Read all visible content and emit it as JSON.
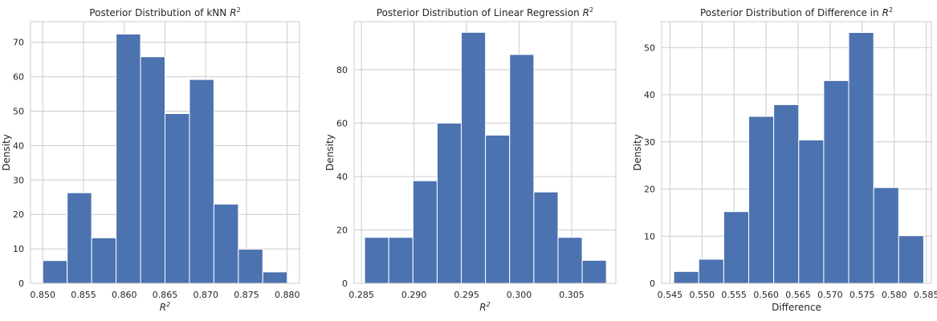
{
  "chart_data": [
    {
      "type": "bar",
      "title": "Posterior Distribution of kNN",
      "title_suffix": "R",
      "title_sup": "2",
      "xlabel": "R",
      "xlabel_sup": "2",
      "ylabel": "Density",
      "xlim": [
        0.8485,
        0.8815
      ],
      "ylim": [
        0,
        76
      ],
      "xticks": [
        0.85,
        0.855,
        0.86,
        0.865,
        0.87,
        0.875,
        0.88
      ],
      "xtick_labels": [
        "0.850",
        "0.855",
        "0.860",
        "0.865",
        "0.870",
        "0.875",
        "0.880"
      ],
      "yticks": [
        0,
        10,
        20,
        30,
        40,
        50,
        60,
        70
      ],
      "ytick_labels": [
        "0",
        "10",
        "20",
        "30",
        "40",
        "50",
        "60",
        "70"
      ],
      "bin_edges": [
        0.85,
        0.853,
        0.856,
        0.859,
        0.862,
        0.865,
        0.868,
        0.871,
        0.874,
        0.877,
        0.88
      ],
      "values": [
        6.6,
        26.3,
        13.2,
        72.4,
        65.8,
        49.3,
        59.2,
        23.0,
        9.9,
        3.3
      ],
      "grid": true,
      "color": "#4c72b0"
    },
    {
      "type": "bar",
      "title": "Posterior Distribution of Linear Regression",
      "title_suffix": "R",
      "title_sup": "2",
      "xlabel": "R",
      "xlabel_sup": "2",
      "ylabel": "Density",
      "xlim": [
        0.2843,
        0.3092
      ],
      "ylim": [
        0,
        98
      ],
      "xticks": [
        0.285,
        0.29,
        0.295,
        0.3,
        0.305
      ],
      "xtick_labels": [
        "0.285",
        "0.290",
        "0.295",
        "0.300",
        "0.305"
      ],
      "yticks": [
        0,
        20,
        40,
        60,
        80
      ],
      "ytick_labels": [
        "0",
        "20",
        "40",
        "60",
        "80"
      ],
      "bin_edges": [
        0.2853,
        0.2876,
        0.2899,
        0.2922,
        0.2945,
        0.2968,
        0.2991,
        0.3014,
        0.3037,
        0.306,
        0.3083
      ],
      "values": [
        17.2,
        17.2,
        38.4,
        60.0,
        94.0,
        55.5,
        85.7,
        34.2,
        17.2,
        8.6
      ],
      "grid": true,
      "color": "#4c72b0"
    },
    {
      "type": "bar",
      "title": "Posterior Distribution of Difference in",
      "title_suffix": "R",
      "title_sup": "2",
      "xlabel": "Difference",
      "xlabel_sup": "",
      "ylabel": "Density",
      "xlim": [
        0.5437,
        0.5858
      ],
      "ylim": [
        0,
        55.5
      ],
      "xticks": [
        0.545,
        0.55,
        0.555,
        0.56,
        0.565,
        0.57,
        0.575,
        0.58,
        0.585
      ],
      "xtick_labels": [
        "0.545",
        "0.550",
        "0.555",
        "0.560",
        "0.565",
        "0.570",
        "0.575",
        "0.580",
        "0.585"
      ],
      "yticks": [
        0,
        10,
        20,
        30,
        40,
        50
      ],
      "ytick_labels": [
        "0",
        "10",
        "20",
        "30",
        "40",
        "50"
      ],
      "bin_edges": [
        0.5456,
        0.5495,
        0.5534,
        0.5573,
        0.5612,
        0.5651,
        0.569,
        0.5729,
        0.5768,
        0.5807,
        0.5846
      ],
      "values": [
        2.5,
        5.1,
        15.2,
        35.4,
        37.9,
        30.4,
        43.0,
        53.2,
        20.3,
        10.1
      ],
      "grid": true,
      "color": "#4c72b0"
    }
  ]
}
